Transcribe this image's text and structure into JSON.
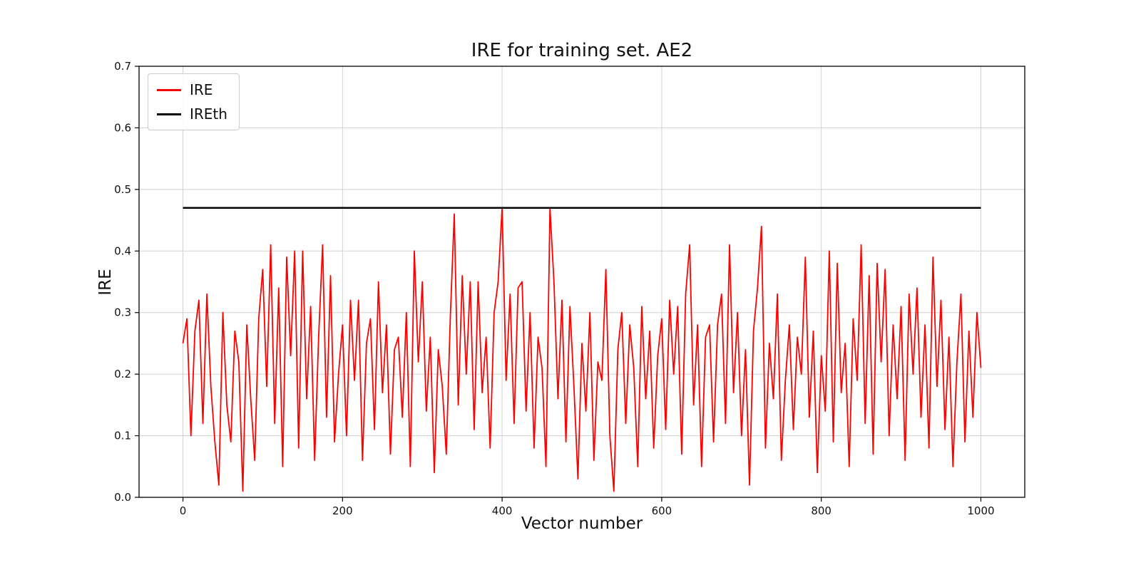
{
  "chart_data": {
    "type": "line",
    "title": "IRE for training set. AE2",
    "xlabel": "Vector number",
    "ylabel": "IRE",
    "xlim": [
      -55,
      1055
    ],
    "ylim": [
      0.0,
      0.7
    ],
    "xticks": [
      0,
      200,
      400,
      600,
      800,
      1000
    ],
    "yticks": [
      0.0,
      0.1,
      0.2,
      0.3,
      0.4,
      0.5,
      0.6,
      0.7
    ],
    "grid": true,
    "grid_color": "#d0d0d0",
    "legend_position": "upper left",
    "series": [
      {
        "name": "IRE",
        "color": "#ff0000",
        "x_start": 0,
        "x_step": 5,
        "values": [
          0.25,
          0.29,
          0.1,
          0.27,
          0.32,
          0.12,
          0.33,
          0.18,
          0.09,
          0.02,
          0.3,
          0.15,
          0.09,
          0.27,
          0.22,
          0.01,
          0.28,
          0.16,
          0.06,
          0.29,
          0.37,
          0.18,
          0.41,
          0.12,
          0.34,
          0.05,
          0.39,
          0.23,
          0.4,
          0.08,
          0.4,
          0.16,
          0.31,
          0.06,
          0.26,
          0.41,
          0.13,
          0.36,
          0.09,
          0.2,
          0.28,
          0.1,
          0.32,
          0.19,
          0.32,
          0.06,
          0.25,
          0.29,
          0.11,
          0.35,
          0.17,
          0.28,
          0.07,
          0.24,
          0.26,
          0.13,
          0.3,
          0.05,
          0.4,
          0.22,
          0.35,
          0.14,
          0.26,
          0.04,
          0.24,
          0.18,
          0.07,
          0.29,
          0.46,
          0.15,
          0.36,
          0.2,
          0.35,
          0.11,
          0.35,
          0.17,
          0.26,
          0.08,
          0.3,
          0.35,
          0.47,
          0.19,
          0.33,
          0.12,
          0.34,
          0.35,
          0.14,
          0.3,
          0.08,
          0.26,
          0.21,
          0.05,
          0.47,
          0.35,
          0.16,
          0.32,
          0.09,
          0.31,
          0.18,
          0.03,
          0.25,
          0.14,
          0.3,
          0.06,
          0.22,
          0.19,
          0.37,
          0.1,
          0.01,
          0.24,
          0.3,
          0.12,
          0.28,
          0.21,
          0.05,
          0.31,
          0.16,
          0.27,
          0.08,
          0.23,
          0.29,
          0.11,
          0.32,
          0.2,
          0.31,
          0.07,
          0.33,
          0.41,
          0.15,
          0.28,
          0.05,
          0.26,
          0.28,
          0.09,
          0.28,
          0.33,
          0.12,
          0.41,
          0.17,
          0.3,
          0.1,
          0.24,
          0.02,
          0.27,
          0.34,
          0.44,
          0.08,
          0.25,
          0.16,
          0.33,
          0.06,
          0.19,
          0.28,
          0.11,
          0.26,
          0.2,
          0.39,
          0.13,
          0.27,
          0.04,
          0.23,
          0.14,
          0.4,
          0.09,
          0.38,
          0.17,
          0.25,
          0.05,
          0.29,
          0.19,
          0.41,
          0.12,
          0.36,
          0.07,
          0.38,
          0.22,
          0.37,
          0.1,
          0.28,
          0.16,
          0.31,
          0.06,
          0.33,
          0.2,
          0.34,
          0.13,
          0.28,
          0.08,
          0.39,
          0.18,
          0.32,
          0.11,
          0.26,
          0.05,
          0.22,
          0.33,
          0.09,
          0.27,
          0.13,
          0.3,
          0.21
        ]
      },
      {
        "name": "IREth",
        "type": "hline",
        "color": "#000000",
        "y": 0.47,
        "x_range": [
          0,
          1000
        ]
      }
    ]
  },
  "legend": {
    "items": [
      {
        "label": "IRE",
        "color": "#ff0000"
      },
      {
        "label": "IREth",
        "color": "#000000"
      }
    ]
  }
}
